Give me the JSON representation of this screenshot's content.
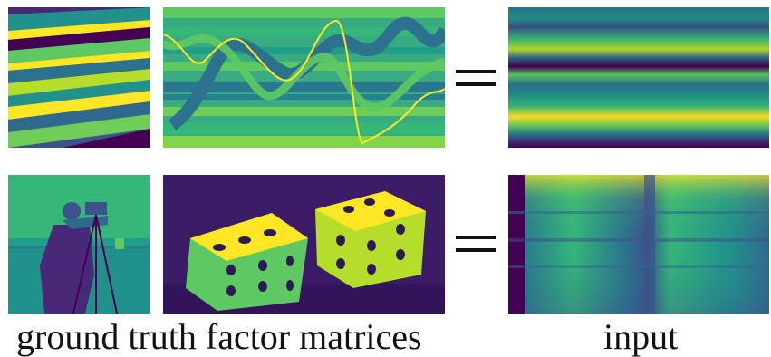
{
  "captions": {
    "left": "ground truth factor matrices",
    "right": "input"
  },
  "colors": {
    "viridis_dark": "#440154",
    "viridis_blue": "#31688e",
    "viridis_teal": "#21918c",
    "viridis_green": "#5ec962",
    "viridis_yellow": "#fde725"
  }
}
